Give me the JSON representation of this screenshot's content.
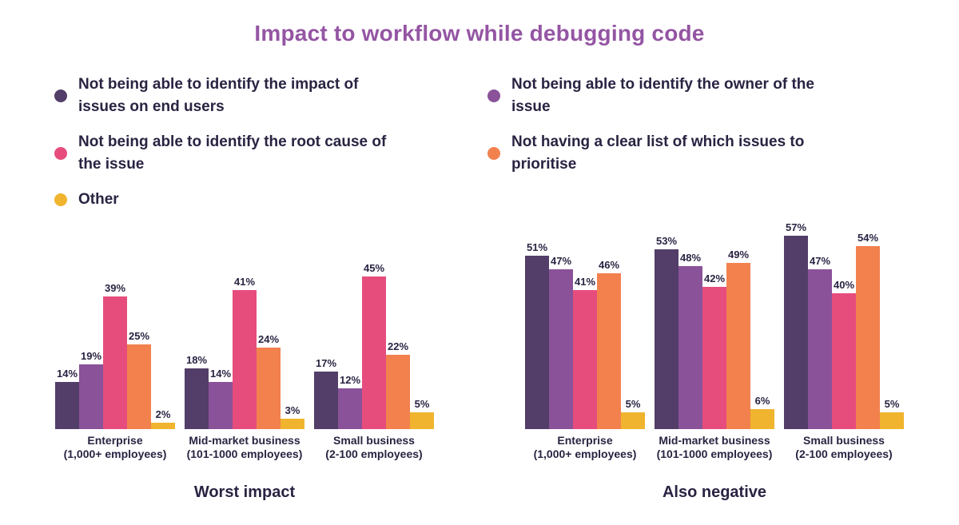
{
  "title": "Impact to workflow while debugging code",
  "colors": {
    "title": "#9455a3",
    "text": "#2a2342",
    "impact_end_users": "#523e68",
    "owner_of_issue": "#8a5299",
    "root_cause": "#e64d7d",
    "prioritise": "#f2814e",
    "other": "#f0b42e"
  },
  "legend": {
    "columns": [
      [
        {
          "label": "Not being able to identify the impact of\nissues on end users",
          "color": "#523e68"
        },
        {
          "label": "Not being able to identify the root cause of\nthe issue",
          "color": "#e64d7d"
        },
        {
          "label": "Other",
          "color": "#f0b42e"
        }
      ],
      [
        {
          "label": "Not being able to identify the owner of the\nissue",
          "color": "#8a5299"
        },
        {
          "label": "Not having a clear list of which issues to\nprioritise",
          "color": "#f2814e"
        }
      ]
    ]
  },
  "chart_data": [
    {
      "type": "bar",
      "title": "Worst impact",
      "unit": "%",
      "ylim": [
        0,
        60
      ],
      "grid": false,
      "legend_position": "top",
      "categories": [
        [
          "Enterprise",
          "(1,000+ employees)"
        ],
        [
          "Mid-market business",
          "(101-1000 employees)"
        ],
        [
          "Small business",
          "(2-100 employees)"
        ]
      ],
      "series": [
        {
          "name": "Not being able to identify the impact of issues on end users",
          "color": "#523e68",
          "values": [
            14,
            18,
            17
          ]
        },
        {
          "name": "Not being able to identify the owner of the issue",
          "color": "#8a5299",
          "values": [
            19,
            14,
            12
          ]
        },
        {
          "name": "Not being able to identify the root cause of the issue",
          "color": "#e64d7d",
          "values": [
            39,
            41,
            45
          ]
        },
        {
          "name": "Not having a clear list of which issues to prioritise",
          "color": "#f2814e",
          "values": [
            25,
            24,
            22
          ]
        },
        {
          "name": "Other",
          "color": "#f0b42e",
          "values": [
            2,
            3,
            5
          ]
        }
      ]
    },
    {
      "type": "bar",
      "title": "Also negative",
      "unit": "%",
      "ylim": [
        0,
        60
      ],
      "grid": false,
      "legend_position": "top",
      "categories": [
        [
          "Enterprise",
          "(1,000+ employees)"
        ],
        [
          "Mid-market business",
          "(101-1000 employees)"
        ],
        [
          "Small business",
          "(2-100 employees)"
        ]
      ],
      "series": [
        {
          "name": "Not being able to identify the impact of issues on end users",
          "color": "#523e68",
          "values": [
            51,
            53,
            57
          ]
        },
        {
          "name": "Not being able to identify the owner of the issue",
          "color": "#8a5299",
          "values": [
            47,
            48,
            47
          ]
        },
        {
          "name": "Not being able to identify the root cause of the issue",
          "color": "#e64d7d",
          "values": [
            41,
            42,
            40
          ]
        },
        {
          "name": "Not having a clear list of which issues to prioritise",
          "color": "#f2814e",
          "values": [
            46,
            49,
            54
          ]
        },
        {
          "name": "Other",
          "color": "#f0b42e",
          "values": [
            5,
            6,
            5
          ]
        }
      ]
    }
  ]
}
